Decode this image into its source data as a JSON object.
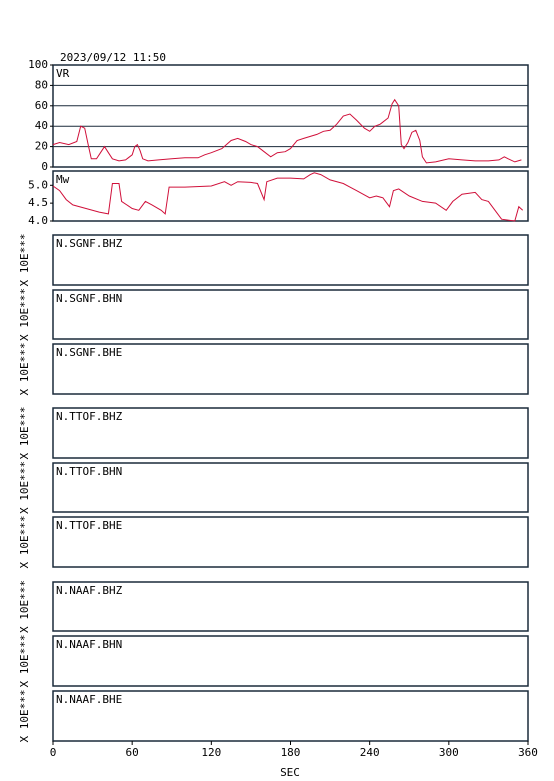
{
  "title": "2023/09/12  11:50",
  "chart_data": [
    {
      "type": "line",
      "label": "VR",
      "color": "#d0103a",
      "grid": true,
      "ylim": [
        0,
        100
      ],
      "yticks": [
        0,
        20,
        40,
        60,
        80,
        100
      ],
      "x": [
        0,
        5,
        12,
        18,
        21,
        24,
        27,
        29,
        33,
        36,
        39,
        42,
        45,
        50,
        55,
        60,
        62,
        64,
        66,
        68,
        72,
        80,
        90,
        100,
        110,
        115,
        120,
        128,
        135,
        140,
        146,
        150,
        155,
        160,
        165,
        170,
        176,
        180,
        185,
        190,
        200,
        205,
        210,
        215,
        220,
        225,
        230,
        236,
        240,
        244,
        248,
        254,
        257,
        259,
        262,
        264,
        266,
        269,
        272,
        275,
        278,
        280,
        283,
        290,
        300,
        310,
        320,
        330,
        338,
        342,
        345,
        350,
        355
      ],
      "values": [
        22,
        24,
        22,
        25,
        40,
        38,
        20,
        8,
        8,
        14,
        20,
        14,
        8,
        6,
        7,
        12,
        20,
        22,
        16,
        8,
        6,
        7,
        8,
        9,
        9,
        12,
        14,
        18,
        26,
        28,
        25,
        22,
        20,
        15,
        10,
        14,
        15,
        18,
        26,
        28,
        32,
        35,
        36,
        42,
        50,
        52,
        46,
        38,
        35,
        40,
        42,
        48,
        62,
        66,
        60,
        22,
        18,
        24,
        34,
        36,
        26,
        10,
        4,
        5,
        8,
        7,
        6,
        6,
        7,
        10,
        8,
        5,
        7
      ]
    },
    {
      "type": "line",
      "label": "Mw",
      "color": "#d0103a",
      "grid": false,
      "ylim": [
        4,
        5.4
      ],
      "yticks": [
        {
          "value": 4,
          "label": "4.0"
        },
        4.5,
        {
          "value": 5,
          "label": "5.0"
        }
      ],
      "x": [
        0,
        5,
        10,
        15,
        25,
        35,
        42,
        45,
        50,
        52,
        60,
        65,
        70,
        75,
        82,
        85,
        88,
        100,
        120,
        130,
        135,
        140,
        150,
        155,
        160,
        162,
        170,
        180,
        190,
        195,
        198,
        203,
        210,
        220,
        225,
        230,
        240,
        245,
        250,
        255,
        258,
        262,
        270,
        280,
        290,
        298,
        303,
        310,
        320,
        325,
        330,
        335,
        340,
        350,
        353,
        356
      ],
      "values": [
        4.98,
        4.85,
        4.6,
        4.45,
        4.35,
        4.25,
        4.2,
        5.05,
        5.05,
        4.55,
        4.35,
        4.3,
        4.55,
        4.45,
        4.3,
        4.2,
        4.95,
        4.95,
        4.98,
        5.1,
        5.0,
        5.1,
        5.08,
        5.05,
        4.6,
        5.1,
        5.2,
        5.2,
        5.18,
        5.3,
        5.35,
        5.3,
        5.15,
        5.05,
        4.95,
        4.85,
        4.65,
        4.7,
        4.65,
        4.4,
        4.85,
        4.9,
        4.7,
        4.55,
        4.5,
        4.3,
        4.55,
        4.75,
        4.8,
        4.6,
        4.55,
        4.3,
        4.05,
        4.0,
        4.4,
        4.3
      ]
    }
  ],
  "x_axis": {
    "label": "SEC",
    "xlim": [
      0,
      360
    ],
    "xticks": [
      0,
      60,
      120,
      180,
      240,
      300,
      360
    ]
  },
  "stations": [
    {
      "name": "N.SGNF.BHZ",
      "scale_label": "X 10E***"
    },
    {
      "name": "N.SGNF.BHN",
      "scale_label": "X 10E***"
    },
    {
      "name": "N.SGNF.BHE",
      "scale_label": "X 10E***"
    },
    {
      "name": "N.TTOF.BHZ",
      "scale_label": "X 10E***"
    },
    {
      "name": "N.TTOF.BHN",
      "scale_label": "X 10E***"
    },
    {
      "name": "N.TTOF.BHE",
      "scale_label": "X 10E***"
    },
    {
      "name": "N.NAAF.BHZ",
      "scale_label": "X 10E***"
    },
    {
      "name": "N.NAAF.BHN",
      "scale_label": "X 10E***"
    },
    {
      "name": "N.NAAF.BHE",
      "scale_label": "X 10E***"
    }
  ]
}
